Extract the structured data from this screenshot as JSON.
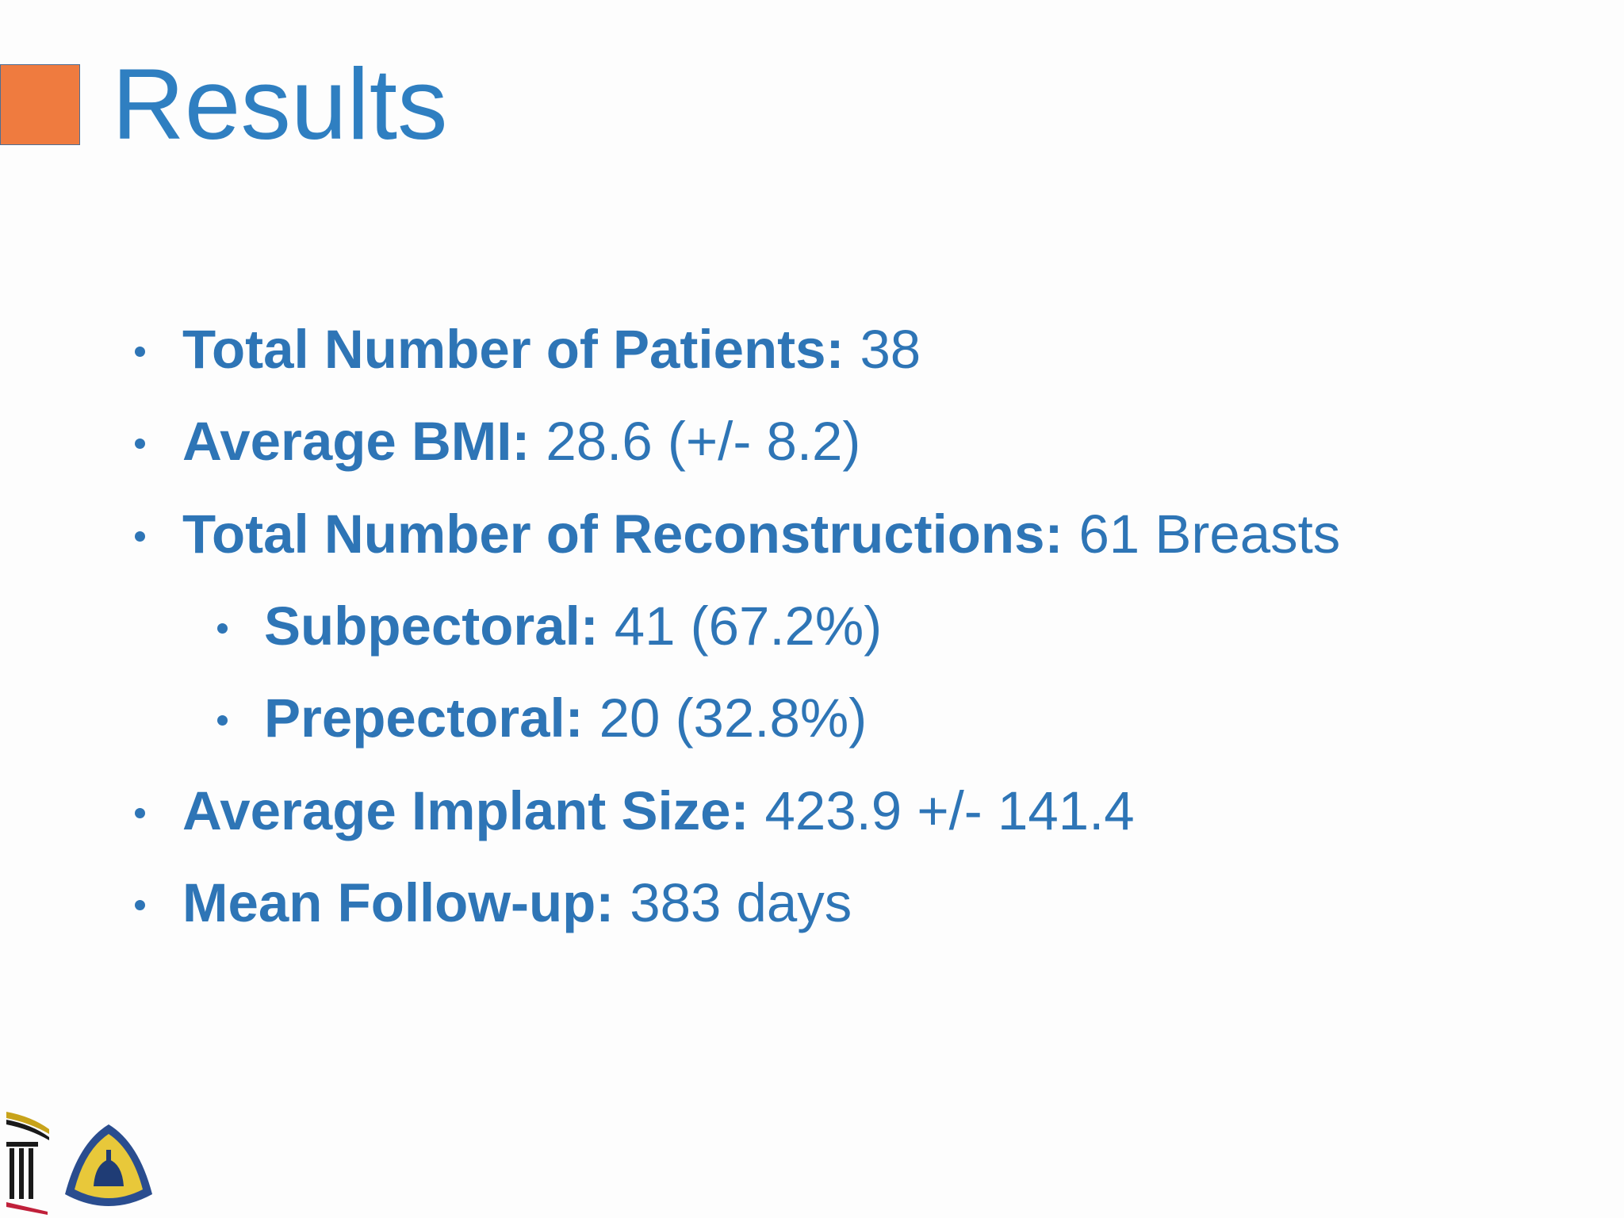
{
  "header": {
    "title": "Results"
  },
  "bullets": [
    {
      "label": "Total Number of Patients:",
      "text": "38"
    },
    {
      "label": "Average BMI:",
      "text": "28.6 (+/- 8.2)"
    },
    {
      "label": "Total Number of Reconstructions:",
      "text": "61 Breasts",
      "children": [
        {
          "label": "Subpectoral:",
          "text": "41 (67.2%)"
        },
        {
          "label": "Prepectoral:",
          "text": "20 (32.8%)"
        }
      ]
    },
    {
      "label": "Average Implant Size:",
      "text": "423.9 +/- 141.4"
    },
    {
      "label": "Mean Follow-up:",
      "text": "383 days"
    }
  ]
}
